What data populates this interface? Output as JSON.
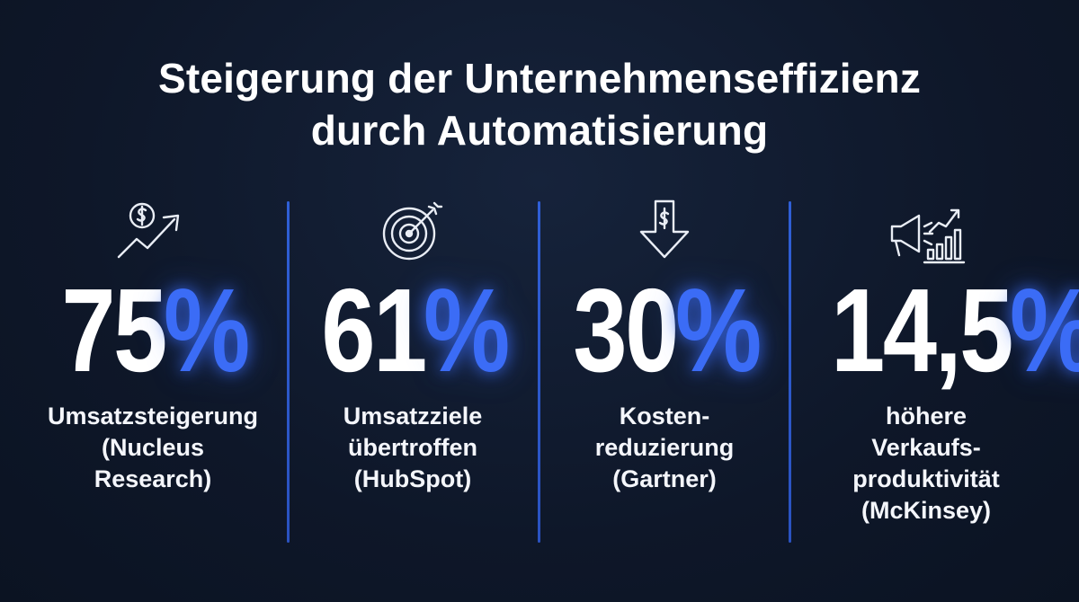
{
  "title": {
    "line1": "Steigerung der Unternehmenseffizienz",
    "line2": "durch Automatisierung"
  },
  "colors": {
    "background": "#0f1a2e",
    "accent": "#3b6cf6",
    "text": "#ffffff"
  },
  "stats": [
    {
      "icon": "dollar-growth-arrow-icon",
      "value": "75",
      "unit": "%",
      "label_lines": [
        "Umsatzsteigerung",
        "(Nucleus",
        "Research)"
      ]
    },
    {
      "icon": "target-arrow-icon",
      "value": "61",
      "unit": "%",
      "label_lines": [
        "Umsatzziele",
        "übertroffen",
        "(HubSpot)"
      ]
    },
    {
      "icon": "dollar-down-arrow-icon",
      "value": "30",
      "unit": "%",
      "label_lines": [
        "Kosten-",
        "reduzierung",
        "(Gartner)"
      ]
    },
    {
      "icon": "megaphone-chart-icon",
      "value": "14,5",
      "unit": "%",
      "label_lines": [
        "höhere",
        "Verkaufs-",
        "produktivität",
        "(McKinsey)"
      ]
    }
  ]
}
